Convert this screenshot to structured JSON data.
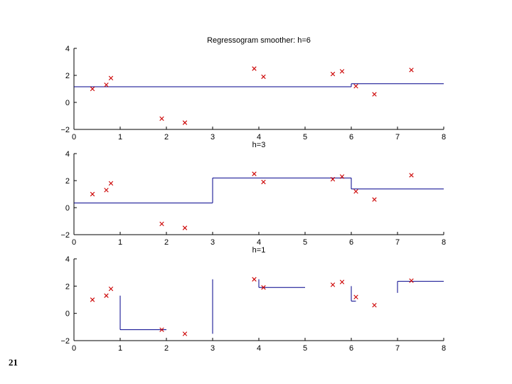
{
  "slide_number": "21",
  "colors": {
    "fit": "#00008b",
    "points": "#cc0000",
    "axes": "#000000"
  },
  "chart_data": [
    {
      "type": "line",
      "title": "Regressogram smoother: h=6",
      "xlim": [
        0,
        8
      ],
      "ylim": [
        -2,
        4
      ],
      "xticks": [
        0,
        1,
        2,
        3,
        4,
        5,
        6,
        7,
        8
      ],
      "yticks": [
        -2,
        0,
        2,
        4
      ],
      "grid": false,
      "points": [
        [
          0.4,
          1.0
        ],
        [
          0.7,
          1.3
        ],
        [
          0.8,
          1.8
        ],
        [
          1.9,
          -1.2
        ],
        [
          2.4,
          -1.5
        ],
        [
          3.9,
          2.5
        ],
        [
          4.1,
          1.9
        ],
        [
          5.6,
          2.1
        ],
        [
          5.8,
          2.3
        ],
        [
          6.1,
          1.2
        ],
        [
          6.5,
          0.6
        ],
        [
          7.3,
          2.4
        ]
      ],
      "steps": [
        {
          "x": [
            0,
            6
          ],
          "y": 1.16
        },
        {
          "x": [
            6,
            8
          ],
          "y": 1.38
        }
      ]
    },
    {
      "type": "line",
      "title": "h=3",
      "xlim": [
        0,
        8
      ],
      "ylim": [
        -2,
        4
      ],
      "xticks": [
        0,
        1,
        2,
        3,
        4,
        5,
        6,
        7,
        8
      ],
      "yticks": [
        -2,
        0,
        2,
        4
      ],
      "grid": false,
      "points": [
        [
          0.4,
          1.0
        ],
        [
          0.7,
          1.3
        ],
        [
          0.8,
          1.8
        ],
        [
          1.9,
          -1.2
        ],
        [
          2.4,
          -1.5
        ],
        [
          3.9,
          2.5
        ],
        [
          4.1,
          1.9
        ],
        [
          5.6,
          2.1
        ],
        [
          5.8,
          2.3
        ],
        [
          6.1,
          1.2
        ],
        [
          6.5,
          0.6
        ],
        [
          7.3,
          2.4
        ]
      ],
      "steps": [
        {
          "x": [
            0,
            3
          ],
          "y": 0.35
        },
        {
          "x": [
            3,
            6
          ],
          "y": 2.2
        },
        {
          "x": [
            6,
            8
          ],
          "y": 1.38
        }
      ]
    },
    {
      "type": "line",
      "title": "h=1",
      "xlim": [
        0,
        8
      ],
      "ylim": [
        -2,
        4
      ],
      "xticks": [
        0,
        1,
        2,
        3,
        4,
        5,
        6,
        7,
        8
      ],
      "yticks": [
        -2,
        0,
        2,
        4
      ],
      "grid": false,
      "points": [
        [
          0.4,
          1.0
        ],
        [
          0.7,
          1.3
        ],
        [
          0.8,
          1.8
        ],
        [
          1.9,
          -1.2
        ],
        [
          2.4,
          -1.5
        ],
        [
          3.9,
          2.5
        ],
        [
          4.1,
          1.9
        ],
        [
          5.6,
          2.1
        ],
        [
          5.8,
          2.3
        ],
        [
          6.1,
          1.2
        ],
        [
          6.5,
          0.6
        ],
        [
          7.3,
          2.4
        ]
      ],
      "steps": [
        {
          "x": [
            1,
            2
          ],
          "y": -1.2,
          "left_from": 1.3
        },
        {
          "x": [
            4,
            5
          ],
          "y": 1.9,
          "left_from": 2.5
        },
        {
          "x": [
            6,
            6.1
          ],
          "y": 0.9,
          "left_from": 2.0
        },
        {
          "x": [
            7,
            8
          ],
          "y": 2.35,
          "left_from": 1.5
        }
      ],
      "spikes": [
        {
          "x": 3,
          "y": [
            -1.5,
            2.5
          ]
        }
      ]
    }
  ]
}
